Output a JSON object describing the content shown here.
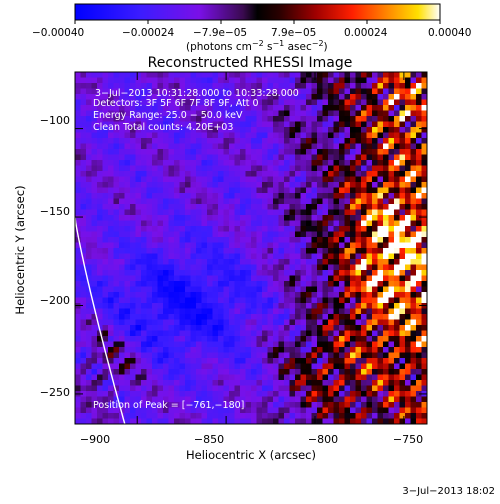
{
  "colorbar": {
    "tick_labels": [
      "−0.00040",
      "−0.00024",
      "−7.9e−05",
      "7.9e−05",
      "0.00024",
      "0.00040"
    ],
    "units_prefix": "(photons cm",
    "units_exp1": "−2",
    "units_mid": " s",
    "units_exp2": "−1",
    "units_tail": " asec",
    "units_exp3": "−2",
    "units_close": ")"
  },
  "plot": {
    "title": "Reconstructed RHESSI Image",
    "info_lines": [
      "3−Jul−2013 10:31:28.000 to 10:33:28.000",
      "Detectors: 3F 5F 6F 7F 8F 9F, Att 0",
      "Energy Range: 25.0 − 50.0 keV",
      "Clean     Total counts: 4.20E+03"
    ],
    "peak_label": "Position of Peak = [−761,−180]",
    "timestamp": "3−Jul−2013 18:02"
  },
  "chart_data": {
    "type": "heatmap",
    "title": "Reconstructed RHESSI Image",
    "xlabel": "Heliocentric X (arcsec)",
    "ylabel": "Heliocentric Y (arcsec)",
    "xlim": [
      -935,
      -737
    ],
    "ylim": [
      -267,
      -68
    ],
    "x_ticks": [
      -900,
      -850,
      -800,
      -750
    ],
    "y_ticks": [
      -100,
      -150,
      -200,
      -250
    ],
    "x_tick_labels": [
      "−900",
      "−850",
      "−800",
      "−750"
    ],
    "y_tick_labels": [
      "−100",
      "−150",
      "−200",
      "−250"
    ],
    "colorbar_range": [
      -0.0004,
      0.0004
    ],
    "colormap": "blue-violet-black-red-yellow-white",
    "peak_position": [
      -761,
      -180
    ]
  }
}
